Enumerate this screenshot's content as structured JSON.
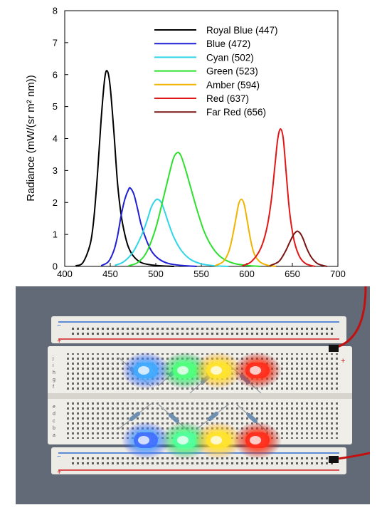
{
  "chart_data": {
    "type": "line",
    "title": "",
    "xlabel": "",
    "ylabel": "Radiance (mW/(sr m² nm))",
    "xlim": [
      400,
      700
    ],
    "ylim": [
      0,
      8
    ],
    "xticks": [
      400,
      450,
      500,
      550,
      600,
      650,
      700
    ],
    "yticks": [
      0,
      1,
      2,
      3,
      4,
      5,
      6,
      7,
      8
    ],
    "legend_position": "top-right",
    "grid": false,
    "series": [
      {
        "name": "Royal Blue (447)",
        "color": "#000000",
        "x": [
          412,
          420,
          428,
          432,
          436,
          440,
          444,
          447,
          450,
          454,
          458,
          462,
          466,
          470,
          476,
          484,
          494,
          505,
          520
        ],
        "y": [
          0.02,
          0.12,
          0.7,
          1.5,
          2.9,
          4.6,
          5.9,
          6.1,
          5.6,
          4.2,
          2.6,
          1.6,
          1.0,
          0.6,
          0.3,
          0.12,
          0.05,
          0.02,
          0.0
        ]
      },
      {
        "name": "Blue (472)",
        "color": "#1f1fd6",
        "x": [
          440,
          448,
          454,
          458,
          462,
          466,
          470,
          472,
          476,
          480,
          484,
          490,
          496,
          504,
          514,
          528,
          545
        ],
        "y": [
          0.02,
          0.15,
          0.5,
          0.95,
          1.6,
          2.1,
          2.4,
          2.45,
          2.25,
          1.8,
          1.3,
          0.8,
          0.45,
          0.22,
          0.09,
          0.03,
          0.0
        ]
      },
      {
        "name": "Cyan (502)",
        "color": "#2ed6e6",
        "x": [
          455,
          465,
          475,
          484,
          490,
          495,
          499,
          502,
          506,
          510,
          514,
          520,
          528,
          538,
          550,
          565,
          580
        ],
        "y": [
          0.03,
          0.15,
          0.45,
          0.95,
          1.4,
          1.85,
          2.05,
          2.1,
          2.0,
          1.7,
          1.35,
          0.9,
          0.5,
          0.22,
          0.08,
          0.02,
          0.0
        ]
      },
      {
        "name": "Green (523)",
        "color": "#2ee02e",
        "x": [
          470,
          480,
          490,
          500,
          508,
          514,
          519,
          523,
          527,
          532,
          538,
          545,
          553,
          562,
          572,
          585,
          600,
          615
        ],
        "y": [
          0.02,
          0.12,
          0.45,
          1.2,
          2.1,
          2.8,
          3.35,
          3.55,
          3.5,
          3.1,
          2.5,
          1.8,
          1.1,
          0.6,
          0.28,
          0.1,
          0.03,
          0.0
        ]
      },
      {
        "name": "Amber (594)",
        "color": "#f0b400",
        "x": [
          565,
          574,
          580,
          584,
          588,
          591,
          594,
          597,
          600,
          604,
          608,
          614,
          622,
          632
        ],
        "y": [
          0.02,
          0.15,
          0.45,
          0.9,
          1.5,
          1.95,
          2.1,
          1.95,
          1.5,
          0.85,
          0.4,
          0.15,
          0.04,
          0.0
        ]
      },
      {
        "name": "Red (637)",
        "color": "#e01818",
        "x": [
          595,
          605,
          615,
          622,
          627,
          631,
          634,
          637,
          640,
          643,
          647,
          652,
          658,
          665,
          675
        ],
        "y": [
          0.02,
          0.15,
          0.55,
          1.2,
          2.1,
          3.2,
          4.0,
          4.3,
          4.0,
          3.0,
          1.7,
          0.8,
          0.3,
          0.08,
          0.0
        ]
      },
      {
        "name": "Far Red (656)",
        "color": "#7a1414",
        "x": [
          625,
          635,
          642,
          647,
          651,
          654,
          656,
          659,
          662,
          666,
          671,
          678,
          688
        ],
        "y": [
          0.02,
          0.15,
          0.45,
          0.75,
          0.98,
          1.08,
          1.1,
          1.02,
          0.85,
          0.55,
          0.28,
          0.08,
          0.0
        ]
      }
    ]
  },
  "photo": {
    "breadboard_rows_left": [
      "j",
      "i",
      "h",
      "g",
      "f",
      "e",
      "d",
      "c",
      "b",
      "a"
    ],
    "rail_plus": "+",
    "rail_minus": "−",
    "led_rows": [
      [
        "#3fa9ff",
        "#4dff7a",
        "#ffe22a",
        "#ff2a1a"
      ],
      [
        "#3f6bff",
        "#4dff9a",
        "#ffe22a",
        "#ff2a1a"
      ]
    ]
  }
}
